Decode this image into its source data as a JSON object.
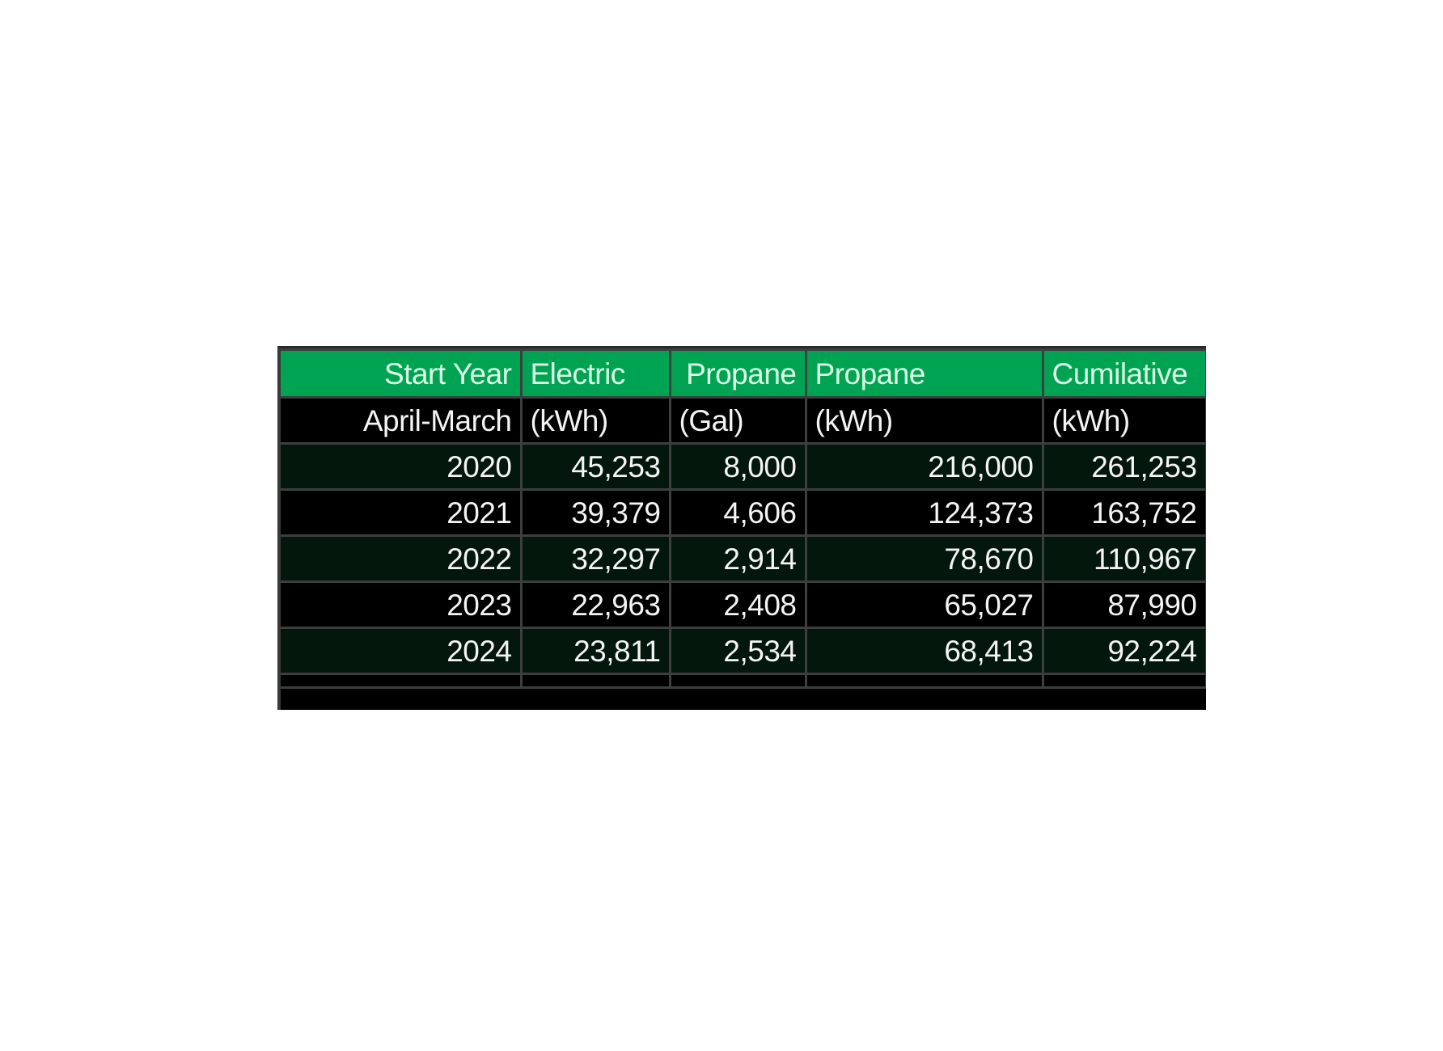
{
  "table": {
    "header_row": [
      "Start Year",
      "Electric",
      "Propane",
      "Propane",
      "Cumilative"
    ],
    "unit_row": [
      "April-March",
      "(kWh)",
      "(Gal)",
      "(kWh)",
      "(kWh)"
    ],
    "rows": [
      [
        "2020",
        "45,253",
        "8,000",
        "216,000",
        "261,253"
      ],
      [
        "2021",
        "39,379",
        "4,606",
        "124,373",
        "163,752"
      ],
      [
        "2022",
        "32,297",
        "2,914",
        "78,670",
        "110,967"
      ],
      [
        "2023",
        "22,963",
        "2,408",
        "65,027",
        "87,990"
      ],
      [
        "2024",
        "23,811",
        "2,534",
        "68,413",
        "92,224"
      ]
    ]
  },
  "colors": {
    "header_bg": "#00a352",
    "alt_row_bg": "#03170d",
    "row_bg": "#000000",
    "grid": "#3c3f3e"
  }
}
